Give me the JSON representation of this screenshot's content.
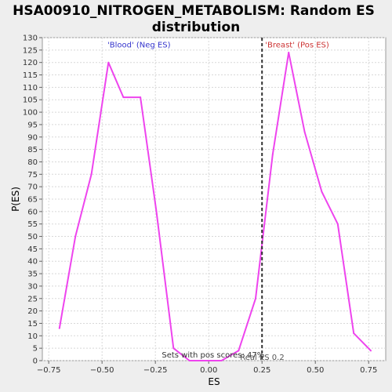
{
  "chart_data": {
    "type": "line",
    "title_lines": [
      "HSA00910_NITROGEN_METABOLISM: Random ES",
      "distribution"
    ],
    "xlabel": "ES",
    "ylabel": "P(ES)",
    "xlim": [
      -0.78,
      0.83
    ],
    "ylim": [
      0,
      130
    ],
    "xticks": [
      -0.75,
      -0.5,
      -0.25,
      0.0,
      0.25,
      0.5,
      0.75
    ],
    "xtick_labels": [
      "−0.75",
      "−0.50",
      "−0.25",
      "0.00",
      "0.25",
      "0.50",
      "0.75"
    ],
    "yticks": [
      0,
      5,
      10,
      15,
      20,
      25,
      30,
      35,
      40,
      45,
      50,
      55,
      60,
      65,
      70,
      75,
      80,
      85,
      90,
      95,
      100,
      105,
      110,
      115,
      120,
      125,
      130
    ],
    "grid": true,
    "series": [
      {
        "color": "#ee44ee",
        "x": [
          -0.7,
          -0.625,
          -0.55,
          -0.47,
          -0.4,
          -0.32,
          -0.245,
          -0.165,
          -0.09,
          0.0,
          0.06,
          0.14,
          0.22,
          0.3,
          0.375,
          0.45,
          0.53,
          0.605,
          0.68,
          0.76
        ],
        "y": [
          13,
          50,
          75,
          120,
          106,
          106,
          60,
          5,
          0,
          0,
          0,
          4,
          25,
          83,
          124,
          92,
          68,
          55,
          11,
          4
        ]
      }
    ],
    "vline": {
      "x": 0.25,
      "label": "Real ES 0.2"
    },
    "annotations": {
      "neg": {
        "text": "'Blood' (Neg ES)",
        "color": "#3333cc",
        "x": -0.475,
        "y": 126
      },
      "pos": {
        "text": "'Breast' (Pos ES)",
        "color": "#cc3333",
        "x": 0.265,
        "y": 126
      },
      "bottom": {
        "text": "Sets with pos scores: 47%",
        "x": -0.22,
        "y": 1.2
      }
    }
  }
}
